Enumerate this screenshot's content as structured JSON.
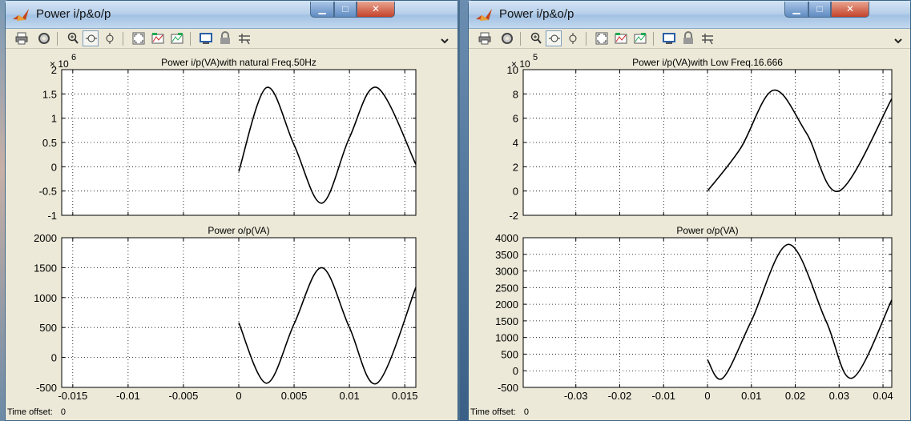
{
  "windows": [
    {
      "id": "left",
      "title": "Power i/p&o/p",
      "status": {
        "label": "Time offset:",
        "value": "0"
      },
      "chart_data": [
        {
          "type": "line",
          "title": "Power i/p(VA)with natural Freq.50Hz",
          "xlim": [
            -0.016,
            0.016
          ],
          "ylim": [
            -1,
            2
          ],
          "y_exponent": "6",
          "xticks": [
            -0.015,
            -0.01,
            -0.005,
            0,
            0.005,
            0.01,
            0.015
          ],
          "xtick_labels": [
            "-0.015",
            "-0.01",
            "-0.005",
            "0",
            "0.005",
            "0.01",
            "0.015"
          ],
          "yticks": [
            -1,
            -0.5,
            0,
            0.5,
            1,
            1.5,
            2
          ],
          "ytick_labels": [
            "-1",
            "-0.5",
            "0",
            "0.5",
            "1",
            "1.5",
            "2"
          ],
          "show_xtick_labels": false,
          "grid": true,
          "series": [
            {
              "x": [
                0,
                0.0025,
                0.005,
                0.0075,
                0.01,
                0.0125,
                0.016
              ],
              "y": [
                -0.1,
                1.63,
                0.45,
                -0.75,
                0.6,
                1.63,
                0.05
              ]
            }
          ]
        },
        {
          "type": "line",
          "title": "Power o/p(VA)",
          "xlim": [
            -0.016,
            0.016
          ],
          "ylim": [
            -500,
            2000
          ],
          "xticks": [
            -0.015,
            -0.01,
            -0.005,
            0,
            0.005,
            0.01,
            0.015
          ],
          "xtick_labels": [
            "-0.015",
            "-0.01",
            "-0.005",
            "0",
            "0.005",
            "0.01",
            "0.015"
          ],
          "yticks": [
            -500,
            0,
            500,
            1000,
            1500,
            2000
          ],
          "ytick_labels": [
            "-500",
            "0",
            "500",
            "1000",
            "1500",
            "2000"
          ],
          "show_xtick_labels": true,
          "grid": true,
          "series": [
            {
              "x": [
                0,
                0.0025,
                0.005,
                0.0075,
                0.01,
                0.0125,
                0.016
              ],
              "y": [
                580,
                -430,
                560,
                1500,
                500,
                -430,
                1170
              ]
            }
          ]
        }
      ]
    },
    {
      "id": "right",
      "title": "Power i/p&o/p",
      "status": {
        "label": "Time offset:",
        "value": "0"
      },
      "chart_data": [
        {
          "type": "line",
          "title": "Power i/p(VA)with Low Freq.16.666",
          "xlim": [
            -0.042,
            0.042
          ],
          "ylim": [
            -2,
            10
          ],
          "y_exponent": "5",
          "xticks": [
            -0.03,
            -0.02,
            -0.01,
            0,
            0.01,
            0.02,
            0.03,
            0.04
          ],
          "xtick_labels": [
            "-0.03",
            "-0.02",
            "-0.01",
            "0",
            "0.01",
            "0.02",
            "0.03",
            "0.04"
          ],
          "yticks": [
            -2,
            0,
            2,
            4,
            6,
            8,
            10
          ],
          "ytick_labels": [
            "-2",
            "0",
            "2",
            "4",
            "6",
            "8",
            "10"
          ],
          "show_xtick_labels": false,
          "grid": true,
          "series": [
            {
              "x": [
                0,
                0.0075,
                0.015,
                0.0225,
                0.03,
                0.042
              ],
              "y": [
                0,
                3.5,
                8.3,
                4.8,
                0,
                7.6
              ]
            }
          ]
        },
        {
          "type": "line",
          "title": "Power o/p(VA)",
          "xlim": [
            -0.042,
            0.042
          ],
          "ylim": [
            -500,
            4000
          ],
          "xticks": [
            -0.03,
            -0.02,
            -0.01,
            0,
            0.01,
            0.02,
            0.03,
            0.04
          ],
          "xtick_labels": [
            "-0.03",
            "-0.02",
            "-0.01",
            "0",
            "0.01",
            "0.02",
            "0.03",
            "0.04"
          ],
          "yticks": [
            -500,
            0,
            500,
            1000,
            1500,
            2000,
            2500,
            3000,
            3500,
            4000
          ],
          "ytick_labels": [
            "-500",
            "0",
            "500",
            "1000",
            "1500",
            "2000",
            "2500",
            "3000",
            "3500",
            "4000"
          ],
          "show_xtick_labels": true,
          "grid": true,
          "series": [
            {
              "x": [
                0,
                0.0035,
                0.01,
                0.0185,
                0.027,
                0.033,
                0.042
              ],
              "y": [
                330,
                -220,
                1500,
                3800,
                1500,
                -220,
                2130
              ]
            }
          ]
        }
      ]
    }
  ],
  "toolbar_icons": [
    "print-icon",
    "parameters-icon",
    "zoom-in-icon",
    "zoom-x-icon",
    "zoom-y-icon",
    "autoscale-icon",
    "save-axes-icon",
    "restore-axes-icon",
    "floating-scope-icon",
    "lock-axes-icon",
    "signal-selection-icon",
    "more-icon"
  ],
  "colors": {
    "plot_bg": "#ffffff",
    "window_bg": "#ece9d8",
    "trace": "#000000",
    "close_button": "#c4432b"
  }
}
